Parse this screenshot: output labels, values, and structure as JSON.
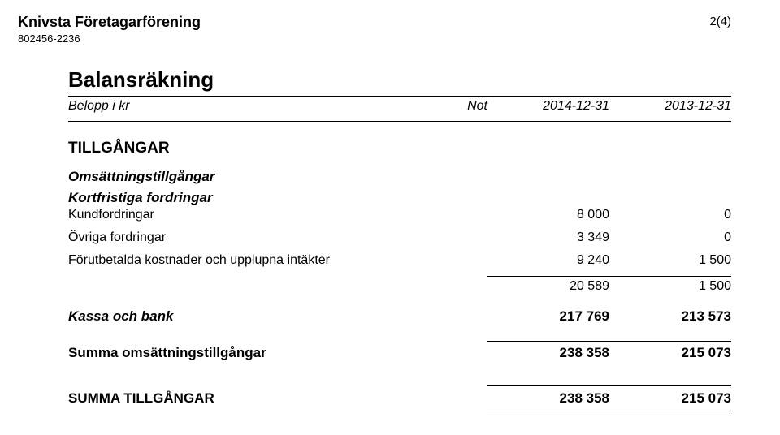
{
  "header": {
    "org_name": "Knivsta Företagarförening",
    "org_id": "802456-2236",
    "page_num": "2(4)"
  },
  "title": "Balansräkning",
  "columns": {
    "label": "Belopp i kr",
    "not": "Not",
    "period_a": "2014-12-31",
    "period_b": "2013-12-31"
  },
  "sections": {
    "tillgangar": "TILLGÅNGAR",
    "oms_tillgangar": "Omsättningstillgångar",
    "kortfristiga": "Kortfristiga fordringar"
  },
  "rows": {
    "kundfordringar": {
      "label": "Kundfordringar",
      "a": "8 000",
      "b": "0"
    },
    "ovriga": {
      "label": "Övriga fordringar",
      "a": "3 349",
      "b": "0"
    },
    "forutbetalda": {
      "label": "Förutbetalda kostnader och upplupna intäkter",
      "a": "9 240",
      "b": "1 500"
    },
    "subtotal": {
      "a": "20 589",
      "b": "1 500"
    },
    "kassa": {
      "label": "Kassa och bank",
      "a": "217 769",
      "b": "213 573"
    },
    "summa_oms": {
      "label": "Summa omsättningstillgångar",
      "a": "238 358",
      "b": "215 073"
    },
    "summa_tillg": {
      "label": "SUMMA TILLGÅNGAR",
      "a": "238 358",
      "b": "215 073"
    }
  }
}
